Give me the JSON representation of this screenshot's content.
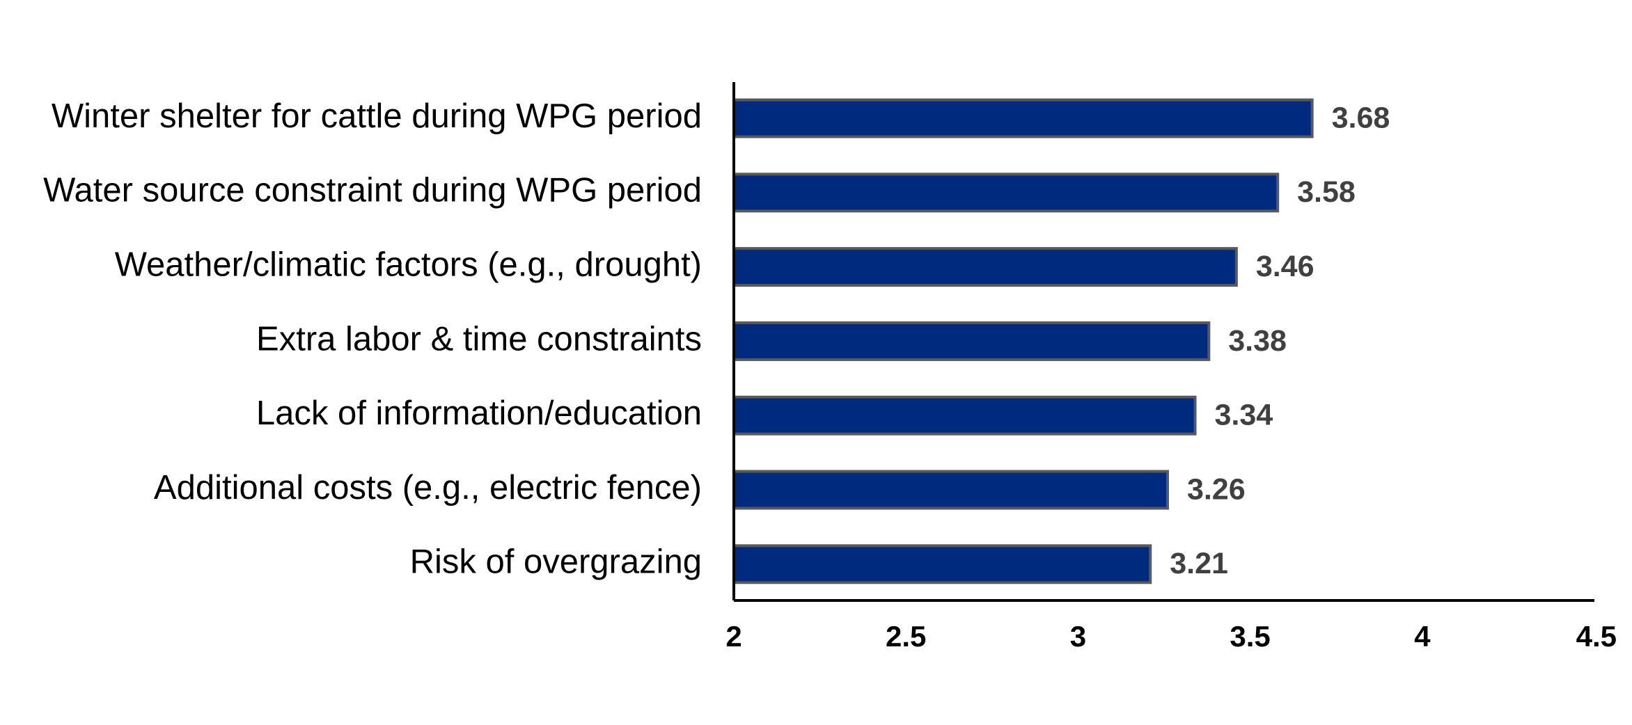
{
  "chart_data": {
    "type": "bar",
    "orientation": "horizontal",
    "categories": [
      "Winter shelter for cattle during WPG period",
      "Water source constraint during WPG period",
      "Weather/climatic factors (e.g., drought)",
      "Extra labor & time constraints",
      "Lack of information/education",
      "Additional costs (e.g., electric fence)",
      "Risk of overgrazing"
    ],
    "values": [
      3.68,
      3.58,
      3.46,
      3.38,
      3.34,
      3.26,
      3.21
    ],
    "data_labels": [
      "3.68",
      "3.58",
      "3.46",
      "3.38",
      "3.34",
      "3.26",
      "3.21"
    ],
    "xlim": [
      2,
      4.5
    ],
    "x_ticks": [
      2,
      2.5,
      3,
      3.5,
      4,
      4.5
    ],
    "x_tick_labels": [
      "2",
      "2.5",
      "3",
      "3.5",
      "4",
      "4.5"
    ],
    "title": "",
    "xlabel": "",
    "ylabel": "",
    "grid": false,
    "legend": "none",
    "colors": {
      "bar_fill": "#002a7e",
      "bar_stroke": "#595959",
      "data_label": "#404040",
      "axis": "#000000"
    }
  }
}
